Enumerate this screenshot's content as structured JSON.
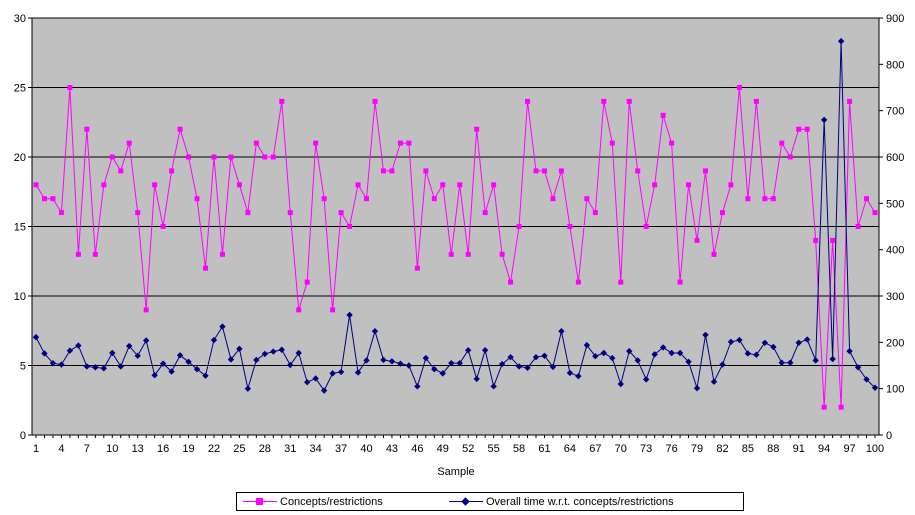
{
  "chart_data": {
    "type": "line",
    "xlabel": "Sample",
    "x_ticks": [
      1,
      4,
      7,
      10,
      13,
      16,
      19,
      22,
      25,
      28,
      31,
      34,
      37,
      40,
      43,
      46,
      49,
      52,
      55,
      58,
      61,
      64,
      67,
      70,
      73,
      76,
      79,
      82,
      85,
      88,
      91,
      94,
      97,
      100
    ],
    "y_left": {
      "range": [
        0,
        30
      ],
      "ticks": [
        0,
        5,
        10,
        15,
        20,
        25,
        30
      ]
    },
    "y_right": {
      "range": [
        0,
        900
      ],
      "ticks": [
        0,
        100,
        200,
        300,
        400,
        500,
        600,
        700,
        800,
        900
      ]
    },
    "grid": "horizontal",
    "legend_position": "bottom",
    "colors": {
      "plot_background": "#c0c0c0",
      "gridline": "#000000"
    },
    "x": [
      1,
      2,
      3,
      4,
      5,
      6,
      7,
      8,
      9,
      10,
      11,
      12,
      13,
      14,
      15,
      16,
      17,
      18,
      19,
      20,
      21,
      22,
      23,
      24,
      25,
      26,
      27,
      28,
      29,
      30,
      31,
      32,
      33,
      34,
      35,
      36,
      37,
      38,
      39,
      40,
      41,
      42,
      43,
      44,
      45,
      46,
      47,
      48,
      49,
      50,
      51,
      52,
      53,
      54,
      55,
      56,
      57,
      58,
      59,
      60,
      61,
      62,
      63,
      64,
      65,
      66,
      67,
      68,
      69,
      70,
      71,
      72,
      73,
      74,
      75,
      76,
      77,
      78,
      79,
      80,
      81,
      82,
      83,
      84,
      85,
      86,
      87,
      88,
      89,
      90,
      91,
      92,
      93,
      94,
      95,
      96,
      97,
      98,
      99,
      100
    ],
    "series": [
      {
        "name": "Concepts/restrictions",
        "axis": "left",
        "color": "#ff00ff",
        "marker": "square",
        "values": [
          18,
          17,
          17,
          16,
          25,
          13,
          22,
          13,
          18,
          20,
          19,
          21,
          16,
          9,
          18,
          15,
          19,
          22,
          20,
          17,
          12,
          20,
          13,
          20,
          18,
          16,
          21,
          20,
          20,
          24,
          16,
          9,
          11,
          21,
          17,
          9,
          16,
          15,
          18,
          17,
          24,
          19,
          19,
          21,
          21,
          12,
          19,
          17,
          18,
          13,
          18,
          13,
          22,
          16,
          18,
          13,
          11,
          15,
          24,
          19,
          19,
          17,
          19,
          15,
          11,
          17,
          16,
          24,
          21,
          11,
          24,
          19,
          15,
          18,
          23,
          21,
          11,
          18,
          14,
          19,
          13,
          16,
          18,
          25,
          17,
          24,
          17,
          17,
          21,
          20,
          22,
          22,
          14,
          2,
          14,
          2,
          24,
          15,
          17,
          16
        ]
      },
      {
        "name": "Overall time w.r.t. concepts/restrictions",
        "axis": "right",
        "color": "#000080",
        "marker": "diamond",
        "values": [
          211,
          176,
          155,
          152,
          182,
          193,
          148,
          146,
          144,
          177,
          148,
          192,
          171,
          204,
          129,
          154,
          137,
          172,
          158,
          142,
          128,
          205,
          234,
          163,
          186,
          100,
          162,
          175,
          180,
          184,
          151,
          177,
          114,
          122,
          96,
          133,
          136,
          259,
          135,
          161,
          224,
          162,
          159,
          154,
          150,
          105,
          166,
          142,
          133,
          155,
          155,
          183,
          121,
          183,
          105,
          153,
          168,
          148,
          145,
          168,
          171,
          147,
          224,
          134,
          127,
          194,
          170,
          177,
          166,
          110,
          181,
          161,
          120,
          174,
          189,
          177,
          177,
          158,
          101,
          216,
          115,
          152,
          201,
          205,
          176,
          173,
          199,
          190,
          156,
          156,
          199,
          206,
          161,
          680,
          164,
          850,
          181,
          146,
          120,
          102
        ]
      }
    ]
  }
}
